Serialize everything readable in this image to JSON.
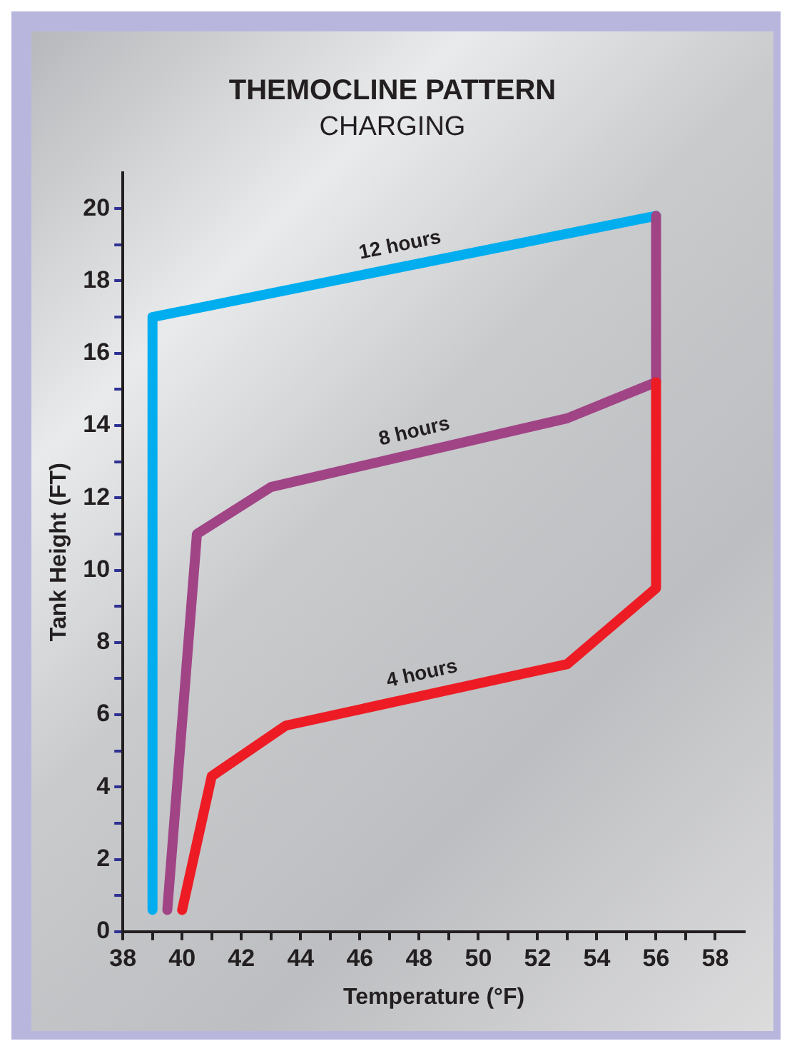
{
  "chart_data": {
    "type": "line",
    "title": "THEMOCLINE PATTERN",
    "subtitle": "CHARGING",
    "xlabel": "Temperature (°F)",
    "ylabel": "Tank Height (FT)",
    "xlim": [
      38,
      59
    ],
    "ylim": [
      0,
      21
    ],
    "xticks": [
      38,
      {
        "value": 39,
        "label": null
      },
      40,
      {
        "value": 41,
        "label": null
      },
      42,
      {
        "value": 43,
        "label": null
      },
      44,
      {
        "value": 45,
        "label": null
      },
      46,
      {
        "value": 47,
        "label": null
      },
      48,
      {
        "value": 49,
        "label": null
      },
      50,
      {
        "value": 51,
        "label": null
      },
      52,
      {
        "value": 53,
        "label": null
      },
      54,
      {
        "value": 55,
        "label": null
      },
      56,
      {
        "value": 57,
        "label": null
      },
      58
    ],
    "yticks": [
      0,
      {
        "value": 1,
        "label": null
      },
      2,
      {
        "value": 3,
        "label": null
      },
      4,
      {
        "value": 5,
        "label": null
      },
      6,
      {
        "value": 7,
        "label": null
      },
      8,
      {
        "value": 9,
        "label": null
      },
      10,
      {
        "value": 11,
        "label": null
      },
      12,
      {
        "value": 13,
        "label": null
      },
      14,
      {
        "value": 15,
        "label": null
      },
      16,
      {
        "value": 17,
        "label": null
      },
      18,
      {
        "value": 19,
        "label": null
      },
      20
    ],
    "grid": false,
    "legend": false,
    "marker": "none",
    "line_style": "solid",
    "series": [
      {
        "name": "4 hours",
        "color": "#ed1c24",
        "x": [
          40,
          41,
          43.5,
          53,
          56,
          56
        ],
        "values": [
          0.6,
          4.3,
          5.7,
          7.4,
          9.5,
          15.2
        ]
      },
      {
        "name": "8 hours",
        "color": "#a04486",
        "x": [
          39.5,
          40.5,
          43,
          53,
          56,
          56
        ],
        "values": [
          0.6,
          11,
          12.3,
          14.2,
          15.2,
          19.8
        ]
      },
      {
        "name": "12 hours",
        "color": "#00aeef",
        "x": [
          39,
          39,
          56
        ],
        "values": [
          0.6,
          17,
          19.8
        ]
      }
    ]
  }
}
